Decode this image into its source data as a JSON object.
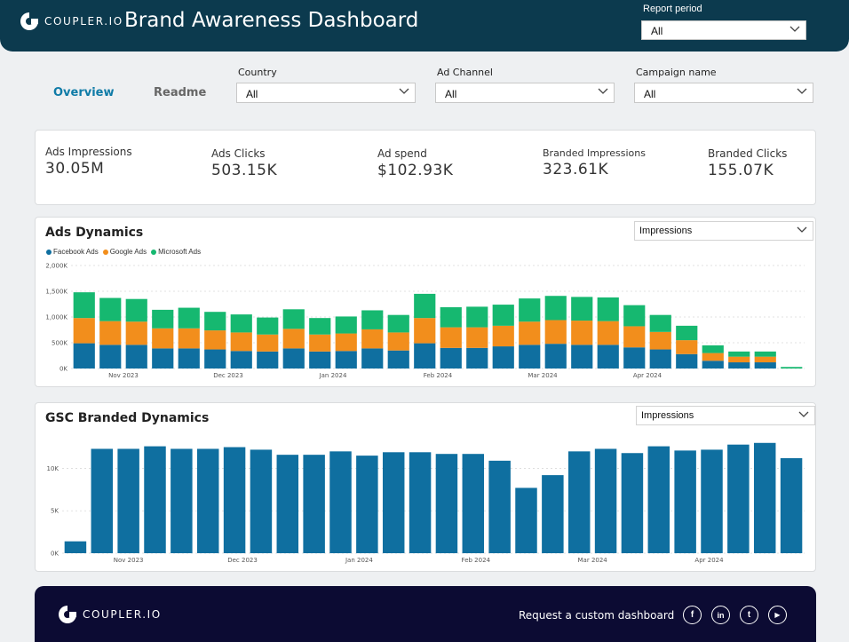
{
  "header": {
    "logo_text": "COUPLER.IO",
    "title": "Brand Awareness Dashboard",
    "report_period": {
      "label": "Report period",
      "value": "All"
    }
  },
  "tabs": [
    {
      "label": "Overview",
      "active": true
    },
    {
      "label": "Readme",
      "active": false
    }
  ],
  "filters": {
    "country": {
      "label": "Country",
      "value": "All"
    },
    "ad_channel": {
      "label": "Ad Channel",
      "value": "All"
    },
    "campaign_name": {
      "label": "Campaign name",
      "value": "All"
    }
  },
  "kpis": [
    {
      "label": "Ads Impressions",
      "value": "30.05M"
    },
    {
      "label": "Ads Clicks",
      "value": "503.15K"
    },
    {
      "label": "Ad spend",
      "value": "$102.93K"
    },
    {
      "label": "Branded Impressions",
      "value": "323.61K"
    },
    {
      "label": "Branded Clicks",
      "value": "155.07K"
    }
  ],
  "ads_dynamics": {
    "title": "Ads Dynamics",
    "metric": "Impressions"
  },
  "gsc_dynamics": {
    "title": "GSC Branded Dynamics",
    "metric": "Impressions"
  },
  "colors": {
    "facebook": "#0f6fa0",
    "google": "#f28e1c",
    "microsoft": "#16b870",
    "gsc_bar": "#0f6fa0",
    "header_bg": "#0c3a4e",
    "footer_bg": "#0c0b33"
  },
  "chart_data": [
    {
      "type": "bar",
      "stacked": true,
      "title": "Ads Dynamics",
      "xlabel": "",
      "ylabel": "",
      "ylim": [
        0,
        2000
      ],
      "y_ticks": [
        0,
        500,
        1000,
        1500,
        2000
      ],
      "y_tick_labels": [
        "0K",
        "500K",
        "1,000K",
        "1,500K",
        "2,000K"
      ],
      "x_tick_labels": [
        {
          "label": "Nov 2023",
          "index": 1.5
        },
        {
          "label": "Dec 2023",
          "index": 5.5
        },
        {
          "label": "Jan 2024",
          "index": 9.5
        },
        {
          "label": "Feb 2024",
          "index": 13.5
        },
        {
          "label": "Mar 2024",
          "index": 17.5
        },
        {
          "label": "Apr 2024",
          "index": 21.5
        }
      ],
      "legend": "top-left",
      "series": [
        {
          "name": "Facebook Ads",
          "values": [
            490,
            460,
            460,
            390,
            390,
            370,
            340,
            330,
            390,
            330,
            340,
            390,
            350,
            490,
            400,
            400,
            430,
            460,
            480,
            460,
            460,
            410,
            370,
            280,
            150,
            120,
            120,
            0
          ]
        },
        {
          "name": "Google Ads",
          "values": [
            490,
            460,
            450,
            390,
            390,
            370,
            360,
            330,
            380,
            330,
            340,
            370,
            350,
            490,
            400,
            400,
            400,
            450,
            460,
            470,
            460,
            410,
            340,
            270,
            150,
            110,
            110,
            0
          ]
        },
        {
          "name": "Microsoft Ads",
          "values": [
            500,
            450,
            440,
            360,
            400,
            360,
            350,
            330,
            380,
            320,
            330,
            370,
            340,
            470,
            390,
            400,
            410,
            450,
            470,
            460,
            460,
            410,
            330,
            280,
            150,
            100,
            100,
            30
          ]
        }
      ]
    },
    {
      "type": "bar",
      "title": "GSC Branded Dynamics",
      "xlabel": "",
      "ylabel": "",
      "ylim": [
        0,
        13500
      ],
      "y_ticks": [
        0,
        5000,
        10000
      ],
      "y_tick_labels": [
        "0K",
        "5K",
        "10K"
      ],
      "x_tick_labels": [
        {
          "label": "Nov 2023",
          "index": 2.5
        },
        {
          "label": "Dec 2023",
          "index": 6.8
        },
        {
          "label": "Jan 2024",
          "index": 11.2
        },
        {
          "label": "Feb 2024",
          "index": 15.6
        },
        {
          "label": "Mar 2024",
          "index": 20
        },
        {
          "label": "Apr 2024",
          "index": 24.4
        }
      ],
      "series": [
        {
          "name": "Impressions",
          "values": [
            1400,
            12300,
            12300,
            12600,
            12300,
            12300,
            12500,
            12200,
            11600,
            11600,
            12000,
            11500,
            11900,
            11900,
            11700,
            11700,
            10900,
            7700,
            9200,
            12000,
            12300,
            11800,
            12600,
            12100,
            12200,
            12800,
            13000,
            11200
          ]
        }
      ]
    }
  ],
  "footer": {
    "logo_text": "COUPLER.IO",
    "cta": "Request a custom dashboard",
    "social": [
      "f",
      "in",
      "t",
      "▶"
    ]
  }
}
